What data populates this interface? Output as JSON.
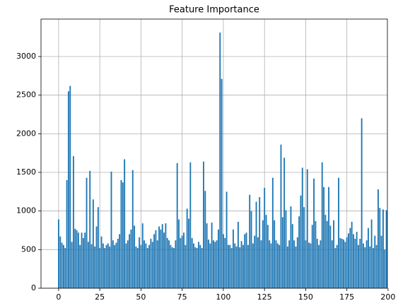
{
  "chart_data": {
    "type": "bar",
    "title": "Feature Importance",
    "x": [
      0,
      1,
      2,
      3,
      4,
      5,
      6,
      7,
      8,
      9,
      10,
      11,
      12,
      13,
      14,
      15,
      16,
      17,
      18,
      19,
      20,
      21,
      22,
      23,
      24,
      25,
      26,
      27,
      28,
      29,
      30,
      31,
      32,
      33,
      34,
      35,
      36,
      37,
      38,
      39,
      40,
      41,
      42,
      43,
      44,
      45,
      46,
      47,
      48,
      49,
      50,
      51,
      52,
      53,
      54,
      55,
      56,
      57,
      58,
      59,
      60,
      61,
      62,
      63,
      64,
      65,
      66,
      67,
      68,
      69,
      70,
      71,
      72,
      73,
      74,
      75,
      76,
      77,
      78,
      79,
      80,
      81,
      82,
      83,
      84,
      85,
      86,
      87,
      88,
      89,
      90,
      91,
      92,
      93,
      94,
      95,
      96,
      97,
      98,
      99,
      100,
      101,
      102,
      103,
      104,
      105,
      106,
      107,
      108,
      109,
      110,
      111,
      112,
      113,
      114,
      115,
      116,
      117,
      118,
      119,
      120,
      121,
      122,
      123,
      124,
      125,
      126,
      127,
      128,
      129,
      130,
      131,
      132,
      133,
      134,
      135,
      136,
      137,
      138,
      139,
      140,
      141,
      142,
      143,
      144,
      145,
      146,
      147,
      148,
      149,
      150,
      151,
      152,
      153,
      154,
      155,
      156,
      157,
      158,
      159,
      160,
      161,
      162,
      163,
      164,
      165,
      166,
      167,
      168,
      169,
      170,
      171,
      172,
      173,
      174,
      175,
      176,
      177,
      178,
      179,
      180,
      181,
      182,
      183,
      184,
      185,
      186,
      187,
      188,
      189,
      190,
      191,
      192,
      193,
      194,
      195,
      196,
      197,
      198,
      199
    ],
    "values": [
      890,
      670,
      590,
      560,
      520,
      1400,
      2550,
      2620,
      600,
      1710,
      770,
      750,
      720,
      560,
      720,
      650,
      720,
      1430,
      600,
      1520,
      570,
      1150,
      540,
      800,
      1050,
      520,
      670,
      580,
      520,
      560,
      580,
      540,
      1510,
      620,
      560,
      590,
      640,
      700,
      1400,
      1370,
      1670,
      580,
      620,
      700,
      760,
      1530,
      810,
      540,
      520,
      660,
      560,
      840,
      620,
      580,
      520,
      560,
      640,
      600,
      700,
      750,
      620,
      800,
      760,
      830,
      720,
      840,
      650,
      620,
      560,
      530,
      520,
      620,
      1620,
      890,
      650,
      680,
      720,
      560,
      1030,
      900,
      1630,
      650,
      580,
      530,
      520,
      600,
      560,
      520,
      1640,
      1260,
      840,
      630,
      580,
      850,
      620,
      600,
      620,
      760,
      3310,
      2710,
      700,
      650,
      1250,
      560,
      560,
      520,
      760,
      580,
      540,
      860,
      530,
      610,
      560,
      700,
      720,
      560,
      1210,
      1000,
      580,
      680,
      1120,
      660,
      1180,
      620,
      880,
      1300,
      950,
      820,
      620,
      580,
      1430,
      880,
      620,
      580,
      560,
      1860,
      920,
      1690,
      1010,
      540,
      620,
      1060,
      830,
      620,
      540,
      660,
      930,
      1200,
      1560,
      1050,
      620,
      1540,
      590,
      580,
      820,
      1420,
      870,
      640,
      560,
      620,
      1630,
      1310,
      950,
      870,
      1310,
      810,
      620,
      880,
      520,
      560,
      1430,
      650,
      640,
      630,
      600,
      660,
      710,
      780,
      860,
      700,
      640,
      730,
      560,
      640,
      2200,
      580,
      530,
      620,
      780,
      540,
      890,
      520,
      680,
      560,
      1280,
      1040,
      680,
      1020,
      500,
      1010
    ],
    "color": "#1f77b4",
    "xlim": [
      -10.7,
      199.6
    ],
    "xticks": [
      0,
      25,
      50,
      75,
      100,
      125,
      150,
      175,
      200
    ],
    "ylim": [
      0,
      3485
    ],
    "yticks": [
      0,
      500,
      1000,
      1500,
      2000,
      2500,
      3000
    ],
    "grid": true
  }
}
